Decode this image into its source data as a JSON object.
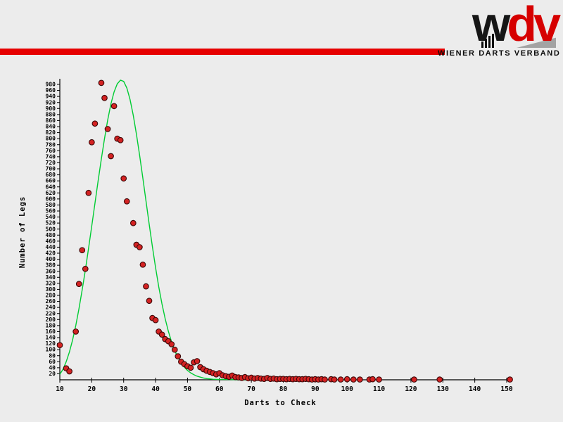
{
  "page": {
    "background": "#ececec"
  },
  "header": {
    "red_bar_color": "#e60000",
    "logo": {
      "w": "w",
      "d": "d",
      "v": "v",
      "w_color": "#161616",
      "d_color": "#d60000",
      "v_color": "#d60000",
      "subtitle": "WIENER DARTS VERBAND"
    }
  },
  "chart_data": {
    "type": "scatter",
    "title": "",
    "xlabel": "Darts to Check",
    "ylabel": "Number of Legs",
    "grid": false,
    "legend": "none",
    "x_axis": {
      "min": 10,
      "max": 150,
      "ticks": [
        10,
        20,
        30,
        40,
        50,
        60,
        70,
        80,
        90,
        100,
        110,
        120,
        130,
        140,
        150
      ]
    },
    "y_axis": {
      "min": 0,
      "tick_step": 20,
      "tick_max": 980
    },
    "series": {
      "scatter": {
        "name": "legs-per-darts-observed",
        "color": "#d42222",
        "outline": "#3c0808",
        "points": [
          [
            10,
            115
          ],
          [
            12,
            38
          ],
          [
            13,
            28
          ],
          [
            15,
            160
          ],
          [
            16,
            318
          ],
          [
            17,
            430
          ],
          [
            18,
            368
          ],
          [
            19,
            620
          ],
          [
            20,
            788
          ],
          [
            21,
            850
          ],
          [
            23,
            985
          ],
          [
            24,
            935
          ],
          [
            25,
            832
          ],
          [
            26,
            742
          ],
          [
            27,
            908
          ],
          [
            28,
            800
          ],
          [
            29,
            795
          ],
          [
            30,
            668
          ],
          [
            31,
            592
          ],
          [
            33,
            520
          ],
          [
            34,
            448
          ],
          [
            35,
            440
          ],
          [
            36,
            382
          ],
          [
            37,
            310
          ],
          [
            38,
            262
          ],
          [
            39,
            205
          ],
          [
            40,
            198
          ],
          [
            41,
            160
          ],
          [
            42,
            150
          ],
          [
            43,
            135
          ],
          [
            44,
            128
          ],
          [
            45,
            118
          ],
          [
            46,
            100
          ],
          [
            47,
            78
          ],
          [
            48,
            60
          ],
          [
            49,
            52
          ],
          [
            50,
            45
          ],
          [
            51,
            40
          ],
          [
            52,
            58
          ],
          [
            53,
            62
          ],
          [
            54,
            42
          ],
          [
            55,
            35
          ],
          [
            56,
            30
          ],
          [
            57,
            26
          ],
          [
            58,
            22
          ],
          [
            59,
            18
          ],
          [
            60,
            22
          ],
          [
            61,
            15
          ],
          [
            62,
            12
          ],
          [
            63,
            10
          ],
          [
            64,
            14
          ],
          [
            65,
            9
          ],
          [
            66,
            8
          ],
          [
            67,
            6
          ],
          [
            68,
            9
          ],
          [
            69,
            5
          ],
          [
            70,
            7
          ],
          [
            71,
            4
          ],
          [
            72,
            6
          ],
          [
            73,
            4
          ],
          [
            74,
            3
          ],
          [
            75,
            6
          ],
          [
            76,
            3
          ],
          [
            77,
            4
          ],
          [
            78,
            2
          ],
          [
            79,
            3
          ],
          [
            80,
            3
          ],
          [
            81,
            2
          ],
          [
            82,
            3
          ],
          [
            83,
            2
          ],
          [
            84,
            3
          ],
          [
            85,
            2
          ],
          [
            86,
            2
          ],
          [
            87,
            3
          ],
          [
            88,
            2
          ],
          [
            89,
            1
          ],
          [
            90,
            2
          ],
          [
            91,
            1
          ],
          [
            92,
            2
          ],
          [
            93,
            1
          ],
          [
            95,
            2
          ],
          [
            96,
            1
          ],
          [
            98,
            1
          ],
          [
            100,
            2
          ],
          [
            102,
            1
          ],
          [
            104,
            1
          ],
          [
            107,
            1
          ],
          [
            108,
            2
          ],
          [
            110,
            1
          ],
          [
            121,
            1
          ],
          [
            129,
            1
          ],
          [
            151,
            1
          ]
        ]
      },
      "curve": {
        "name": "fitted-distribution-curve",
        "color": "#00cc33",
        "points": [
          [
            10,
            18
          ],
          [
            11,
            35
          ],
          [
            12,
            60
          ],
          [
            13,
            92
          ],
          [
            14,
            132
          ],
          [
            15,
            180
          ],
          [
            16,
            236
          ],
          [
            17,
            298
          ],
          [
            18,
            364
          ],
          [
            19,
            436
          ],
          [
            20,
            510
          ],
          [
            21,
            585
          ],
          [
            22,
            660
          ],
          [
            23,
            732
          ],
          [
            24,
            800
          ],
          [
            25,
            862
          ],
          [
            26,
            915
          ],
          [
            27,
            955
          ],
          [
            28,
            982
          ],
          [
            29,
            994
          ],
          [
            30,
            990
          ],
          [
            31,
            968
          ],
          [
            32,
            930
          ],
          [
            33,
            878
          ],
          [
            34,
            815
          ],
          [
            35,
            745
          ],
          [
            36,
            670
          ],
          [
            37,
            593
          ],
          [
            38,
            516
          ],
          [
            39,
            442
          ],
          [
            40,
            372
          ],
          [
            41,
            308
          ],
          [
            42,
            252
          ],
          [
            43,
            203
          ],
          [
            44,
            161
          ],
          [
            45,
            126
          ],
          [
            46,
            97
          ],
          [
            47,
            74
          ],
          [
            48,
            56
          ],
          [
            49,
            42
          ],
          [
            50,
            31
          ],
          [
            51,
            23
          ],
          [
            52,
            17
          ],
          [
            53,
            12
          ],
          [
            54,
            9
          ],
          [
            55,
            6
          ],
          [
            56,
            4
          ],
          [
            58,
            2
          ],
          [
            60,
            1
          ],
          [
            63,
            1
          ],
          [
            66,
            0
          ],
          [
            70,
            0
          ]
        ]
      }
    }
  }
}
